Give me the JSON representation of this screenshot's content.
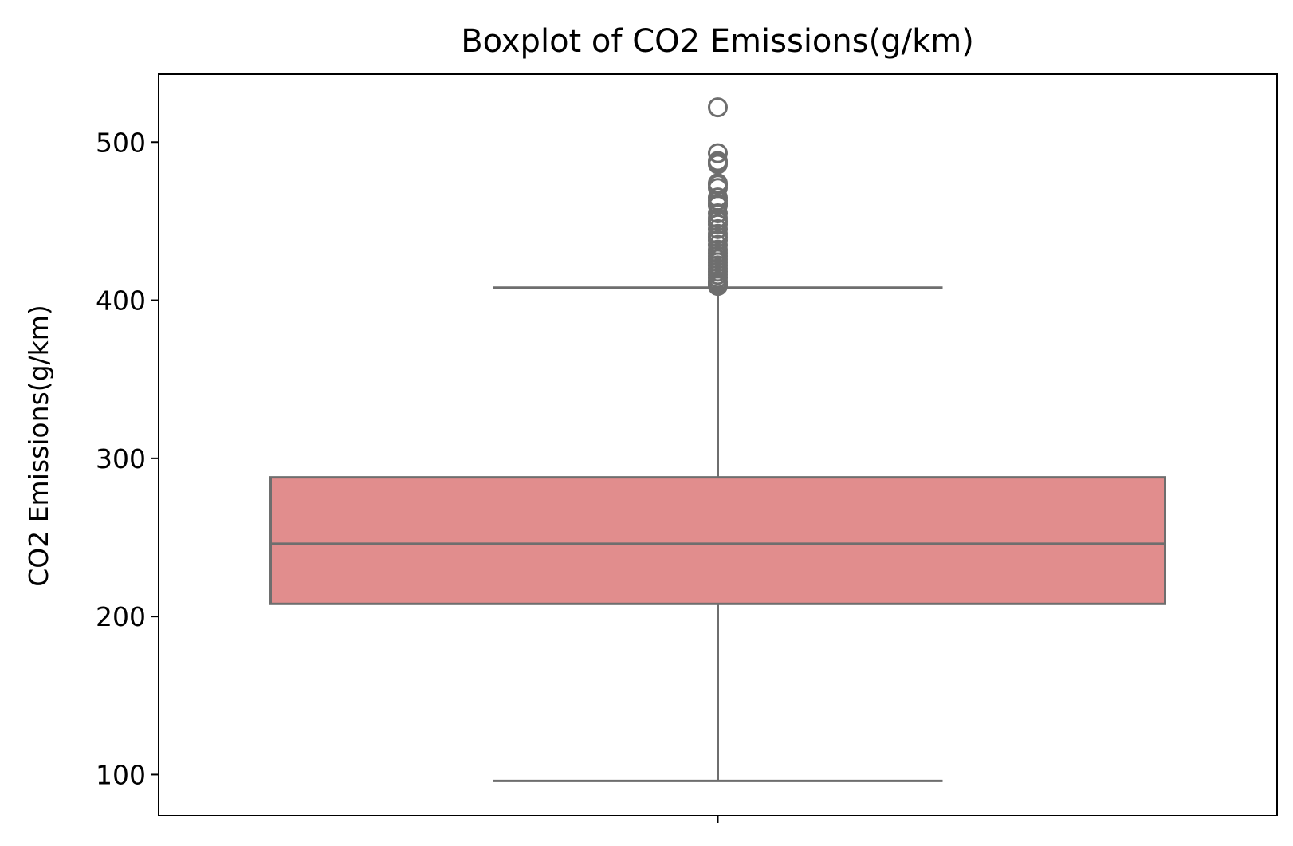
{
  "chart_data": {
    "type": "boxplot",
    "title": "Boxplot of CO2 Emissions(g/km)",
    "xlabel": "",
    "ylabel": "CO2 Emissions(g/km)",
    "ylim": [
      74,
      543
    ],
    "yticks": [
      100,
      200,
      300,
      400,
      500
    ],
    "xticks": [
      ""
    ],
    "grid": false,
    "legend": "none",
    "colors": {
      "box_fill": "#e18d8d",
      "box_edge": "#6e6e6e",
      "frame": "#000000"
    },
    "box": {
      "whisker_low": 96,
      "q1": 208,
      "median": 246,
      "q3": 288,
      "whisker_high": 408
    },
    "outliers": [
      522,
      493,
      488,
      487,
      486,
      474,
      473,
      471,
      465,
      463,
      461,
      460,
      455,
      452,
      450,
      448,
      445,
      442,
      440,
      438,
      435,
      432,
      430,
      428,
      426,
      424,
      422,
      420,
      418,
      416,
      414,
      412,
      411,
      410,
      409
    ]
  }
}
